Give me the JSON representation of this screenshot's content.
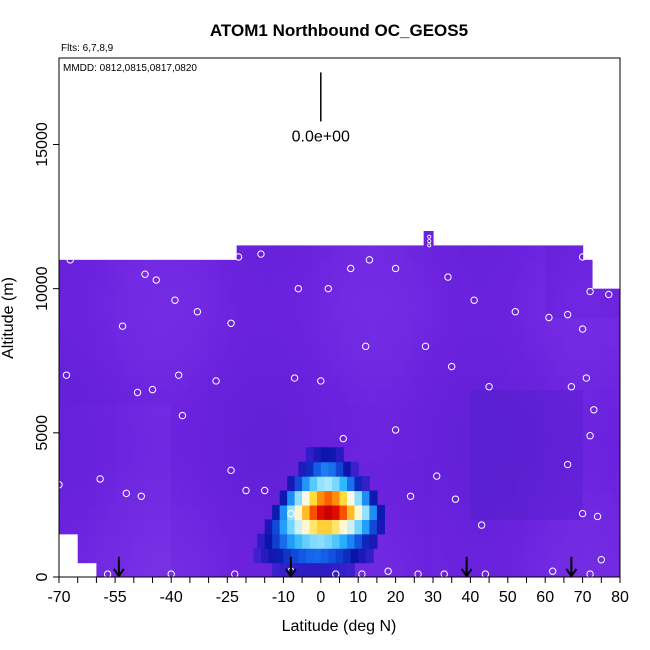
{
  "chart_data": {
    "type": "heatmap",
    "title": "ATOM1 Northbound OC_GEOS5",
    "subtitle_flights": "Flts: 6,7,8,9",
    "legend_dates": "MMDD: 0812,0815,0817,0820",
    "xlabel": "Latitude (deg N)",
    "ylabel": "Altitude (m)",
    "xlim": [
      -70,
      80
    ],
    "ylim": [
      0,
      18000
    ],
    "x_ticks_labeled": [
      -70,
      -55,
      -40,
      -25,
      -10,
      0,
      10,
      20,
      30,
      40,
      50,
      60,
      70,
      80
    ],
    "x_tick_labels": [
      "-70",
      "-55",
      "-40",
      "-25",
      "-10",
      "0",
      "10",
      "20",
      "30",
      "40",
      "50",
      "60",
      "70",
      "80"
    ],
    "x_ticks_all": [
      -70,
      -65,
      -60,
      -55,
      -50,
      -45,
      -40,
      -35,
      -30,
      -25,
      -20,
      -15,
      -10,
      -5,
      0,
      5,
      10,
      15,
      20,
      25,
      30,
      35,
      40,
      45,
      50,
      55,
      60,
      65,
      70,
      75,
      80
    ],
    "y_ticks": [
      0,
      5000,
      10000,
      15000
    ],
    "y_tick_labels": [
      "0",
      "5000",
      "10000",
      "15000"
    ],
    "scale_label": "0.0e+00",
    "scale_bar": {
      "x": 0,
      "y_bottom": 15800,
      "y_top": 17500
    },
    "colors": {
      "background": "#6b22de",
      "background_light": "#7a34e6",
      "background_dark": "#5a1fd0",
      "marker": "#ffffff",
      "arrow": "#000000"
    },
    "plume": {
      "center_lat": 0,
      "center_alt": 2300,
      "rows": [
        {
          "alt": 250,
          "lat_min": -19,
          "lat_max": 17,
          "peak": 0.1
        },
        {
          "alt": 750,
          "lat_min": -18,
          "lat_max": 17,
          "peak": 0.32
        },
        {
          "alt": 1250,
          "lat_min": -17,
          "lat_max": 18,
          "peak": 0.52
        },
        {
          "alt": 1750,
          "lat_min": -15,
          "lat_max": 19,
          "peak": 0.78
        },
        {
          "alt": 2250,
          "lat_min": -13,
          "lat_max": 19,
          "peak": 1.0
        },
        {
          "alt": 2750,
          "lat_min": -11,
          "lat_max": 17,
          "peak": 0.88
        },
        {
          "alt": 3250,
          "lat_min": -9,
          "lat_max": 14,
          "peak": 0.55
        },
        {
          "alt": 3750,
          "lat_min": -6,
          "lat_max": 11,
          "peak": 0.35
        },
        {
          "alt": 4250,
          "lat_min": -4,
          "lat_max": 9,
          "peak": 0.18
        }
      ]
    },
    "arrows_lat": [
      -54,
      -8,
      39,
      67
    ],
    "samples": [
      [
        -67,
        11000
      ],
      [
        -47,
        10500
      ],
      [
        -44,
        10300
      ],
      [
        -39,
        9600
      ],
      [
        -33,
        9200
      ],
      [
        -24,
        8800
      ],
      [
        -53,
        8700
      ],
      [
        -22,
        11100
      ],
      [
        -16,
        11200
      ],
      [
        -6,
        10000
      ],
      [
        2,
        10000
      ],
      [
        8,
        10700
      ],
      [
        13,
        11000
      ],
      [
        20,
        10700
      ],
      [
        34,
        10400
      ],
      [
        41,
        9600
      ],
      [
        52,
        9200
      ],
      [
        61,
        9000
      ],
      [
        66,
        9100
      ],
      [
        70,
        8600
      ],
      [
        72,
        9900
      ],
      [
        77,
        9800
      ],
      [
        70,
        11100
      ],
      [
        -68,
        7000
      ],
      [
        -38,
        7000
      ],
      [
        -28,
        6800
      ],
      [
        -7,
        6900
      ],
      [
        0,
        6800
      ],
      [
        12,
        8000
      ],
      [
        28,
        8000
      ],
      [
        35,
        7300
      ],
      [
        45,
        6600
      ],
      [
        67,
        6600
      ],
      [
        71,
        6900
      ],
      [
        -49,
        6400
      ],
      [
        -45,
        6500
      ],
      [
        -37,
        5600
      ],
      [
        20,
        5100
      ],
      [
        6,
        4800
      ],
      [
        73,
        5800
      ],
      [
        72,
        4900
      ],
      [
        -24,
        3700
      ],
      [
        -59,
        3400
      ],
      [
        -70,
        3200
      ],
      [
        -20,
        3000
      ],
      [
        -15,
        3000
      ],
      [
        -8,
        2200
      ],
      [
        31,
        3500
      ],
      [
        24,
        2800
      ],
      [
        36,
        2700
      ],
      [
        43,
        1800
      ],
      [
        66,
        3900
      ],
      [
        70,
        2200
      ],
      [
        74,
        2100
      ],
      [
        -52,
        2900
      ],
      [
        -48,
        2800
      ],
      [
        -57,
        100
      ],
      [
        -40,
        100
      ],
      [
        -23,
        100
      ],
      [
        -8,
        200
      ],
      [
        4,
        100
      ],
      [
        11,
        100
      ],
      [
        18,
        200
      ],
      [
        26,
        100
      ],
      [
        33,
        100
      ],
      [
        44,
        100
      ],
      [
        62,
        200
      ],
      [
        72,
        100
      ],
      [
        75,
        600
      ],
      [
        81,
        100
      ]
    ]
  }
}
